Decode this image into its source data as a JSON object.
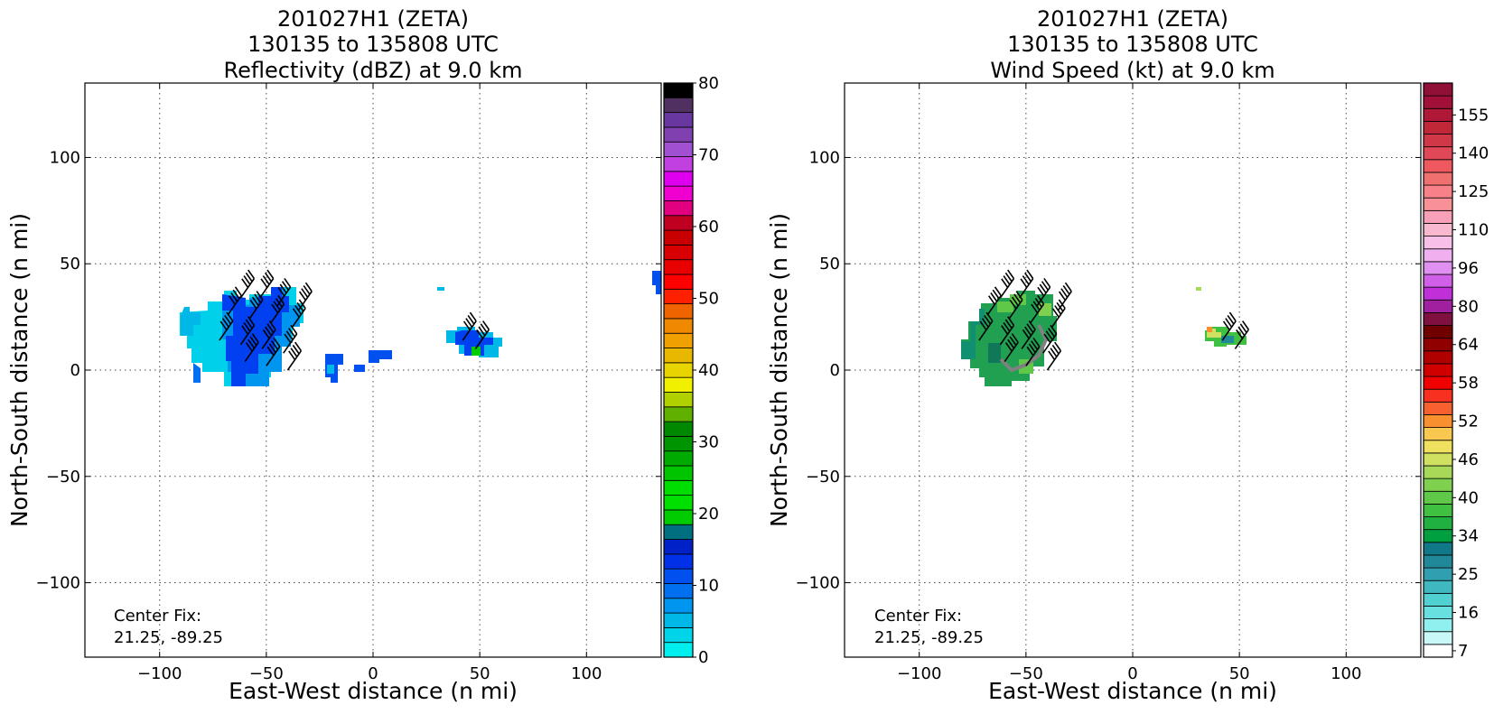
{
  "chart_data": [
    {
      "type": "heatmap",
      "title_lines": [
        "201027H1 (ZETA)",
        "130135 to 135808 UTC",
        "Reflectivity (dBZ) at 9.0 km"
      ],
      "xlabel": "East-West distance (n mi)",
      "ylabel": "North-South distance (n mi)",
      "xlim": [
        -135,
        135
      ],
      "ylim": [
        -135,
        135
      ],
      "xticks": [
        -100,
        -50,
        0,
        50,
        100
      ],
      "yticks": [
        -100,
        -50,
        0,
        50,
        100
      ],
      "xtick_labels": [
        "−100",
        "−50",
        "0",
        "50",
        "100"
      ],
      "ytick_labels": [
        "−100",
        "−50",
        "0",
        "50",
        "100"
      ],
      "grid": true,
      "annotation": [
        "Center Fix:",
        "21.25, -89.25"
      ],
      "colorbar": {
        "ticks": [
          0,
          10,
          20,
          30,
          40,
          50,
          60,
          70,
          80
        ],
        "tick_labels": [
          "0",
          "10",
          "20",
          "30",
          "40",
          "50",
          "60",
          "70",
          "80"
        ],
        "colors": [
          "#00eeee",
          "#00d4e8",
          "#00b8e8",
          "#0096f0",
          "#0070f0",
          "#0050f0",
          "#0030e8",
          "#0020c8",
          "#007080",
          "#00cc00",
          "#00e000",
          "#00dd00",
          "#00c400",
          "#00aa00",
          "#009400",
          "#008800",
          "#60b000",
          "#b0d000",
          "#f0f000",
          "#e8d400",
          "#e8b800",
          "#f0a000",
          "#f08800",
          "#f06400",
          "#ff2000",
          "#ff0000",
          "#e80000",
          "#d80000",
          "#c80000",
          "#c00020",
          "#e00080",
          "#f000d0",
          "#e000f0",
          "#c040e0",
          "#a050d0",
          "#8040b0",
          "#6838a0",
          "#503060",
          "#000000"
        ]
      },
      "barbs": [
        [
          -62,
          34
        ],
        [
          -53,
          34
        ],
        [
          -45,
          30
        ],
        [
          -35,
          28
        ],
        [
          -68,
          26
        ],
        [
          -58,
          24
        ],
        [
          -48,
          22
        ],
        [
          -38,
          20
        ],
        [
          -72,
          14
        ],
        [
          -62,
          12
        ],
        [
          -52,
          10
        ],
        [
          -42,
          8
        ],
        [
          -60,
          4
        ],
        [
          -50,
          2
        ],
        [
          -40,
          0
        ],
        [
          42,
          14
        ],
        [
          48,
          10
        ]
      ]
    },
    {
      "type": "heatmap",
      "title_lines": [
        "201027H1 (ZETA)",
        "130135 to 135808 UTC",
        "Wind Speed (kt) at 9.0 km"
      ],
      "xlabel": "East-West distance (n mi)",
      "ylabel": "North-South distance (n mi)",
      "xlim": [
        -135,
        135
      ],
      "ylim": [
        -135,
        135
      ],
      "xticks": [
        -100,
        -50,
        0,
        50,
        100
      ],
      "yticks": [
        -100,
        -50,
        0,
        50,
        100
      ],
      "xtick_labels": [
        "−100",
        "−50",
        "0",
        "50",
        "100"
      ],
      "ytick_labels": [
        "−100",
        "−50",
        "0",
        "50",
        "100"
      ],
      "grid": true,
      "annotation": [
        "Center Fix:",
        "21.25, -89.25"
      ],
      "colorbar": {
        "tick_labels": [
          "7",
          "16",
          "25",
          "34",
          "40",
          "46",
          "52",
          "58",
          "64",
          "80",
          "96",
          "110",
          "125",
          "140",
          "155"
        ],
        "tick_indices": [
          0.5,
          3.5,
          6.5,
          9.5,
          12.5,
          15.5,
          18.5,
          21.5,
          24.5,
          27.5,
          30.5,
          33.5,
          36.5,
          39.5,
          42.5
        ],
        "colors": [
          "#ffffff",
          "#c8f8f8",
          "#90f0f0",
          "#68e0e0",
          "#50d0d0",
          "#40b8c0",
          "#30a0b0",
          "#208898",
          "#107888",
          "#00a040",
          "#20b040",
          "#40c040",
          "#60c848",
          "#80d050",
          "#a8d858",
          "#d0e060",
          "#f0e060",
          "#f8c850",
          "#f89030",
          "#f86030",
          "#f83020",
          "#f00000",
          "#d00000",
          "#b00000",
          "#900000",
          "#700000",
          "#801040",
          "#a020a0",
          "#c030d8",
          "#d060e8",
          "#e090f0",
          "#f0b0f0",
          "#f8c0e8",
          "#f8b8d0",
          "#f8a0b8",
          "#f89098",
          "#f88088",
          "#f07070",
          "#f05860",
          "#e04858",
          "#d03848",
          "#c02838",
          "#b01838",
          "#a01038",
          "#901038"
        ]
      },
      "barbs": [
        [
          -62,
          34
        ],
        [
          -53,
          34
        ],
        [
          -45,
          30
        ],
        [
          -35,
          28
        ],
        [
          -68,
          26
        ],
        [
          -58,
          24
        ],
        [
          -48,
          22
        ],
        [
          -38,
          20
        ],
        [
          -72,
          14
        ],
        [
          -62,
          12
        ],
        [
          -52,
          10
        ],
        [
          -42,
          8
        ],
        [
          -60,
          4
        ],
        [
          -50,
          2
        ],
        [
          -40,
          0
        ],
        [
          42,
          14
        ],
        [
          48,
          10
        ]
      ]
    }
  ]
}
